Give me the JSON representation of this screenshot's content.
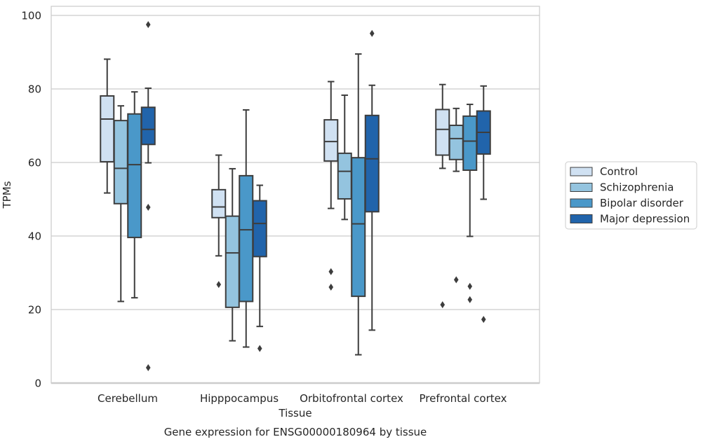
{
  "chart_data": {
    "type": "box",
    "xlabel": "Tissue",
    "ylabel": "TPMs",
    "caption": "Gene expression for ENSG00000180964 by tissue",
    "ylim": [
      0,
      100
    ],
    "yticks": [
      0,
      20,
      40,
      60,
      80,
      100
    ],
    "grid": "horizontal",
    "legend_position": "right",
    "categories": [
      "Cerebellum",
      "Hipppocampus",
      "Orbitofrontal cortex",
      "Prefrontal cortex"
    ],
    "series": [
      {
        "name": "Control",
        "color": "#d0e1f2",
        "boxes": [
          {
            "whislo": 51.7,
            "q1": 60.2,
            "med": 71.8,
            "q3": 78.1,
            "whishi": 88.1,
            "fliers": []
          },
          {
            "whislo": 34.6,
            "q1": 45.0,
            "med": 47.9,
            "q3": 52.6,
            "whishi": 62.0,
            "fliers": [
              26.8
            ]
          },
          {
            "whislo": 47.5,
            "q1": 60.4,
            "med": 65.7,
            "q3": 71.6,
            "whishi": 82.0,
            "fliers": [
              30.3,
              26.1
            ]
          },
          {
            "whislo": 58.4,
            "q1": 62.0,
            "med": 69.0,
            "q3": 74.4,
            "whishi": 81.2,
            "fliers": [
              21.3
            ]
          }
        ]
      },
      {
        "name": "Schizophrenia",
        "color": "#94c4df",
        "boxes": [
          {
            "whislo": 22.2,
            "q1": 48.8,
            "med": 58.4,
            "q3": 71.4,
            "whishi": 75.4,
            "fliers": []
          },
          {
            "whislo": 11.5,
            "q1": 20.6,
            "med": 35.4,
            "q3": 45.4,
            "whishi": 58.3,
            "fliers": []
          },
          {
            "whislo": 44.5,
            "q1": 50.1,
            "med": 57.6,
            "q3": 62.5,
            "whishi": 78.3,
            "fliers": []
          },
          {
            "whislo": 57.6,
            "q1": 60.8,
            "med": 66.5,
            "q3": 70.1,
            "whishi": 74.7,
            "fliers": [
              28.1
            ]
          }
        ]
      },
      {
        "name": "Bipolar disorder",
        "color": "#4a98c9",
        "boxes": [
          {
            "whislo": 23.2,
            "q1": 39.6,
            "med": 59.4,
            "q3": 73.2,
            "whishi": 79.2,
            "fliers": []
          },
          {
            "whislo": 9.8,
            "q1": 22.2,
            "med": 41.7,
            "q3": 56.4,
            "whishi": 74.3,
            "fliers": []
          },
          {
            "whislo": 7.7,
            "q1": 23.6,
            "med": 43.3,
            "q3": 61.3,
            "whishi": 89.5,
            "fliers": []
          },
          {
            "whislo": 39.9,
            "q1": 57.9,
            "med": 65.8,
            "q3": 72.6,
            "whishi": 75.8,
            "fliers": [
              26.3,
              22.7
            ]
          }
        ]
      },
      {
        "name": "Major depression",
        "color": "#2164ab",
        "boxes": [
          {
            "whislo": 59.9,
            "q1": 64.9,
            "med": 69.0,
            "q3": 75.0,
            "whishi": 80.2,
            "fliers": [
              97.5,
              47.8,
              4.2
            ]
          },
          {
            "whislo": 15.4,
            "q1": 34.4,
            "med": 43.4,
            "q3": 49.6,
            "whishi": 53.8,
            "fliers": [
              9.4
            ]
          },
          {
            "whislo": 14.4,
            "q1": 46.6,
            "med": 61.0,
            "q3": 72.8,
            "whishi": 81.0,
            "fliers": [
              95.1
            ]
          },
          {
            "whislo": 50.0,
            "q1": 62.3,
            "med": 68.2,
            "q3": 74.0,
            "whishi": 80.8,
            "fliers": [
              17.3
            ]
          }
        ]
      }
    ]
  }
}
